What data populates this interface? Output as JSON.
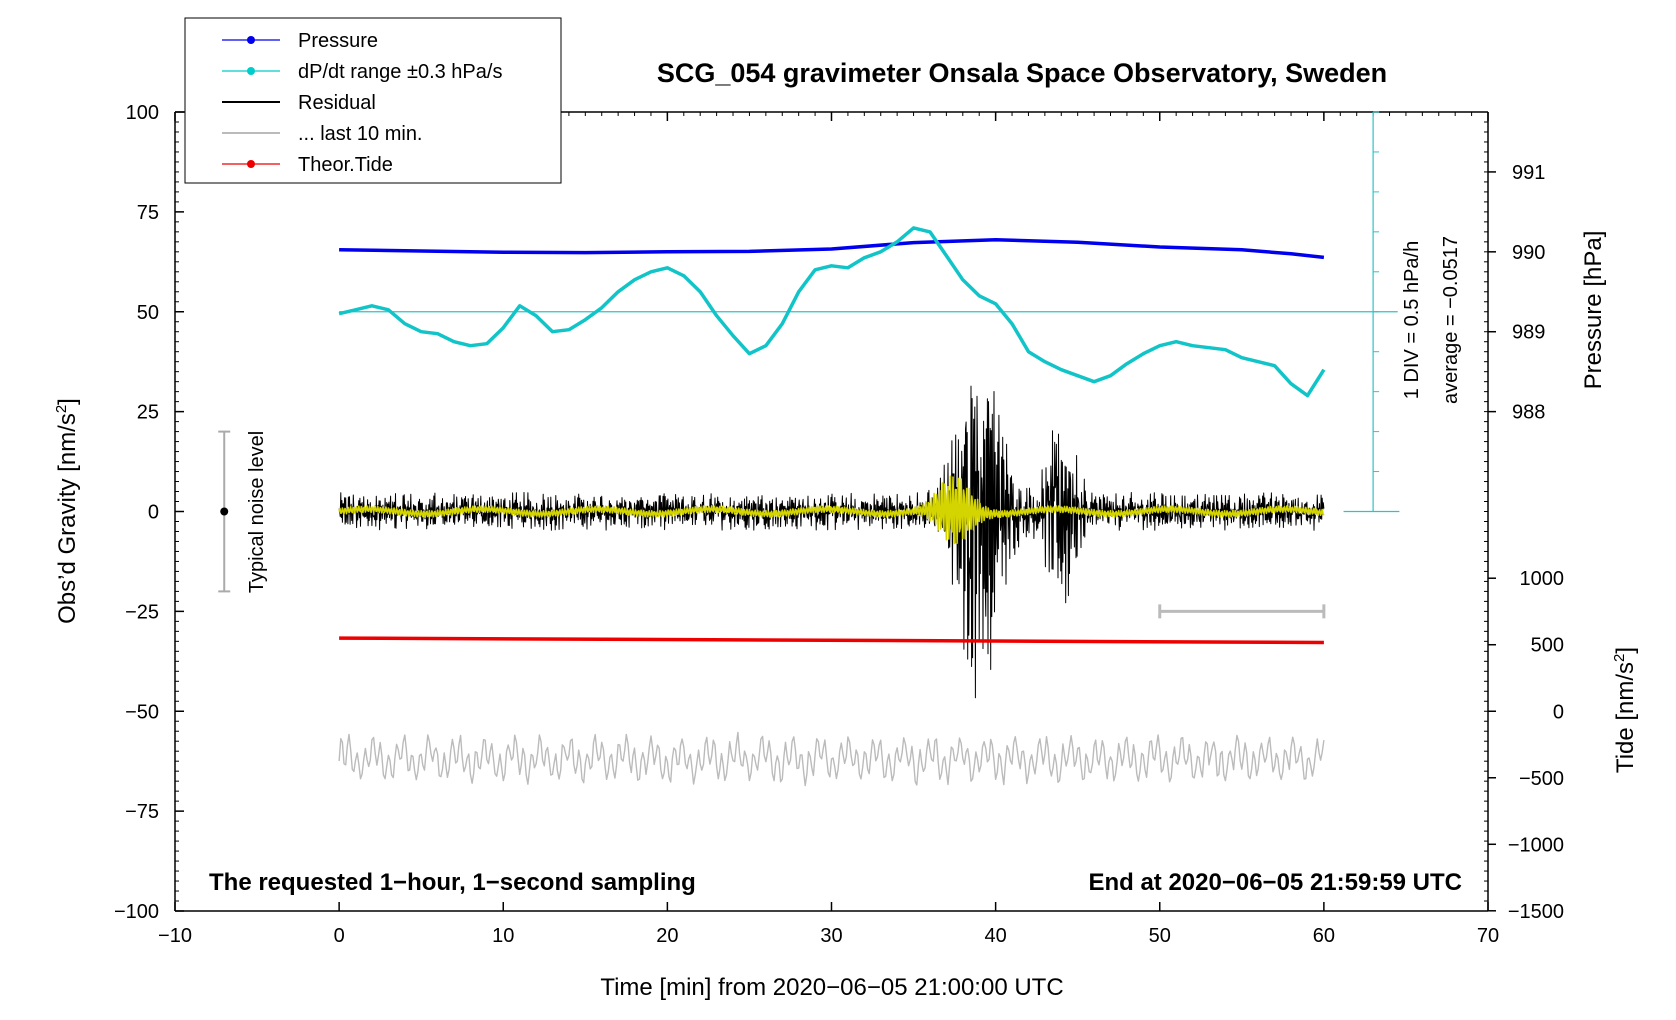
{
  "chart_data": {
    "type": "line",
    "title": "SCG_054 gravimeter Onsala Space Observatory, Sweden",
    "xlabel": "Time [min] from 2020−06−05 21:00:00 UTC",
    "ylabel": "Obs’d Gravity [nm/s",
    "ylabel_sup": "2",
    "ylabel_close": "]",
    "xlim": [
      -10,
      70
    ],
    "ylim": [
      -100,
      100
    ],
    "x_ticks": [
      -10,
      0,
      10,
      20,
      30,
      40,
      50,
      60,
      70
    ],
    "x_tick_labels": [
      "−10",
      "0",
      "10",
      "20",
      "30",
      "40",
      "50",
      "60",
      "70"
    ],
    "y_ticks": [
      -100,
      -75,
      -50,
      -25,
      0,
      25,
      50,
      75,
      100
    ],
    "y_tick_labels": [
      "−100",
      "−75",
      "−50",
      "−25",
      "0",
      "25",
      "50",
      "75",
      "100"
    ],
    "pressure_axis": {
      "label": "Pressure [hPa]",
      "ticks": [
        988,
        989,
        990,
        991
      ],
      "tick_labels": [
        "988",
        "989",
        "990",
        "991"
      ],
      "gravity_at_988": 25,
      "units_per_hPa": 20
    },
    "tide_axis": {
      "label": "Tide [nm/s",
      "label_sup": "2",
      "label_close": "]",
      "ticks": [
        -1500,
        -1000,
        -500,
        0,
        500,
        1000
      ],
      "tick_labels": [
        "−1500",
        "−1000",
        "−500",
        "0",
        "500",
        "1000"
      ],
      "gravity_at_0": -50,
      "units_per_1000": 33.3
    },
    "dpdt_scale": {
      "label1": "1 DIV = 0.5 hPa/h",
      "label2": "average = −0.0517",
      "ref_level": 50
    },
    "noise_bar": {
      "label": "Typical noise level",
      "x": -7,
      "low": -20,
      "high": 20,
      "center": 0
    },
    "last10_bar": {
      "x_start": 50,
      "x_end": 60,
      "y": -25
    },
    "notes": {
      "left": "The requested 1−hour, 1−second sampling",
      "right": "End at 2020−06−05 21:59:59 UTC"
    },
    "legend": [
      {
        "name": "Pressure",
        "color": "#0000ee",
        "marker": true
      },
      {
        "name": "dP/dt range ±0.3 hPa/s",
        "color": "#00cccc",
        "marker": true
      },
      {
        "name": "Residual",
        "color": "#000000",
        "marker": false
      },
      {
        "name": "... last 10 min.",
        "color": "#bbbbbb",
        "marker": false
      },
      {
        "name": "Theor.Tide",
        "color": "#ee0000",
        "marker": true
      }
    ],
    "series": [
      {
        "name": "Pressure",
        "color": "#0000ee",
        "x": [
          0,
          5,
          10,
          15,
          20,
          25,
          30,
          35,
          40,
          45,
          50,
          55,
          58,
          60
        ],
        "values": [
          65.5,
          65.2,
          64.9,
          64.8,
          65.0,
          65.1,
          65.7,
          67.3,
          68.0,
          67.4,
          66.2,
          65.5,
          64.5,
          63.6
        ]
      },
      {
        "name": "dP/dt",
        "color": "#11c4c8",
        "x": [
          0,
          1,
          2,
          3,
          4,
          5,
          6,
          7,
          8,
          9,
          10,
          11,
          12,
          13,
          14,
          15,
          16,
          17,
          18,
          19,
          20,
          21,
          22,
          23,
          24,
          25,
          26,
          27,
          28,
          29,
          30,
          31,
          32,
          33,
          34,
          35,
          36,
          37,
          38,
          39,
          40,
          41,
          42,
          43,
          44,
          45,
          46,
          47,
          48,
          49,
          50,
          51,
          52,
          53,
          54,
          55,
          56,
          57,
          58,
          59,
          60
        ],
        "values": [
          49.5,
          50.5,
          51.5,
          50.5,
          47,
          45,
          44.5,
          42.5,
          41.5,
          42,
          46,
          51.5,
          49,
          45,
          45.5,
          48,
          51,
          55,
          58,
          60,
          61,
          59,
          55,
          49,
          44,
          39.5,
          41.5,
          47,
          55,
          60.5,
          61.5,
          61,
          63.5,
          65,
          67.5,
          71,
          70,
          64,
          58,
          54,
          52,
          47,
          40,
          37.5,
          35.5,
          34,
          32.5,
          34,
          37,
          39.5,
          41.5,
          42.5,
          41.5,
          41,
          40.5,
          38.5,
          37.5,
          36.5,
          32,
          29,
          35.5
        ]
      },
      {
        "name": "Theor.Tide",
        "color": "#ee0000",
        "x": [
          0,
          60
        ],
        "values": [
          -31.7,
          -32.8
        ]
      }
    ]
  }
}
